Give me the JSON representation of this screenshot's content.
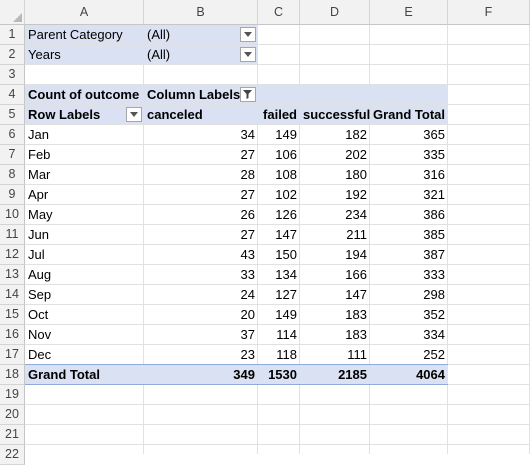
{
  "columns": [
    "A",
    "B",
    "C",
    "D",
    "E",
    "F"
  ],
  "rows": [
    "1",
    "2",
    "3",
    "4",
    "5",
    "6",
    "7",
    "8",
    "9",
    "10",
    "11",
    "12",
    "13",
    "14",
    "15",
    "16",
    "17",
    "18",
    "19",
    "20",
    "21",
    "22"
  ],
  "filters": {
    "parent_category_label": "Parent Category",
    "parent_category_value": "(All)",
    "years_label": "Years",
    "years_value": "(All)"
  },
  "pivot": {
    "values_label": "Count of outcome",
    "column_labels": "Column Labels",
    "row_labels": "Row Labels",
    "headers": [
      "canceled",
      "failed",
      "successful",
      "Grand Total"
    ],
    "months": [
      {
        "label": "Jan",
        "values": [
          "34",
          "149",
          "182",
          "365"
        ]
      },
      {
        "label": "Feb",
        "values": [
          "27",
          "106",
          "202",
          "335"
        ]
      },
      {
        "label": "Mar",
        "values": [
          "28",
          "108",
          "180",
          "316"
        ]
      },
      {
        "label": "Apr",
        "values": [
          "27",
          "102",
          "192",
          "321"
        ]
      },
      {
        "label": "May",
        "values": [
          "26",
          "126",
          "234",
          "386"
        ]
      },
      {
        "label": "Jun",
        "values": [
          "27",
          "147",
          "211",
          "385"
        ]
      },
      {
        "label": "Jul",
        "values": [
          "43",
          "150",
          "194",
          "387"
        ]
      },
      {
        "label": "Aug",
        "values": [
          "33",
          "134",
          "166",
          "333"
        ]
      },
      {
        "label": "Sep",
        "values": [
          "24",
          "127",
          "147",
          "298"
        ]
      },
      {
        "label": "Oct",
        "values": [
          "20",
          "149",
          "183",
          "352"
        ]
      },
      {
        "label": "Nov",
        "values": [
          "37",
          "114",
          "183",
          "334"
        ]
      },
      {
        "label": "Dec",
        "values": [
          "23",
          "118",
          "111",
          "252"
        ]
      }
    ],
    "grand_total_label": "Grand Total",
    "grand_total_values": [
      "349",
      "1530",
      "2185",
      "4064"
    ]
  },
  "colors": {
    "pivot_fill": "#d9e1f2",
    "total_border": "#8ea9db",
    "header_bg": "#f2f2f2"
  }
}
